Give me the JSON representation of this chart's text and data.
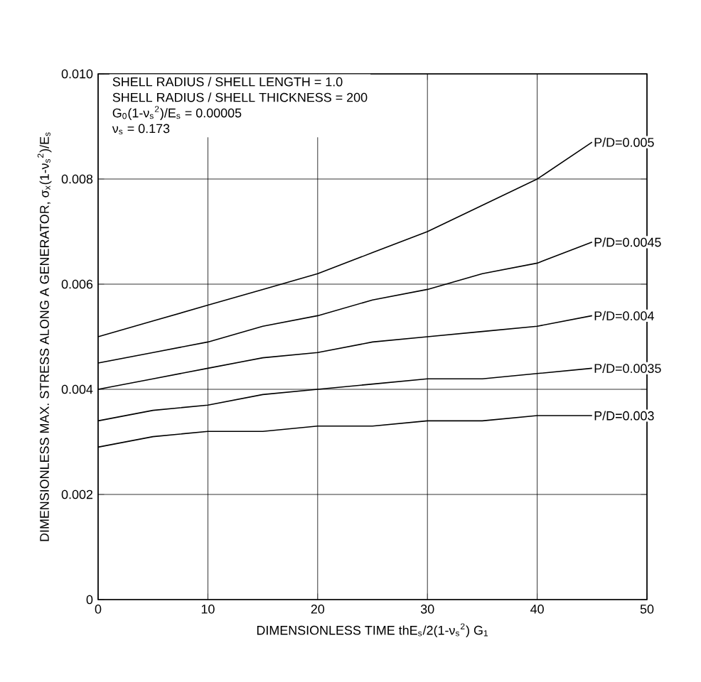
{
  "chart_data": {
    "type": "line",
    "xlabel": "DIMENSIONLESS TIME    thE$_{s}$/2(1-ν$_{s}$$^{2}$) G$_{1}$",
    "ylabel": "DIMENSIONLESS MAX. STRESS ALONG A GENERATOR, σ$_{x}$(1-ν$_{s}$$^{2}$)/E$_{s}$",
    "annotations": [
      "SHELL RADIUS / SHELL LENGTH = 1.0",
      "SHELL RADIUS / SHELL THICKNESS = 200",
      "G$_{0}$(1-ν$_{s}$$^{2}$)/E$_{s}$ = 0.00005",
      "ν$_{s}$ = 0.173"
    ],
    "x": [
      0,
      5,
      10,
      15,
      20,
      25,
      30,
      35,
      40,
      45
    ],
    "series": [
      {
        "name": "P/D=0.005",
        "color": "#000000",
        "values": [
          0.005,
          0.0053,
          0.0056,
          0.0059,
          0.0062,
          0.0066,
          0.007,
          0.0075,
          0.008,
          0.0087
        ]
      },
      {
        "name": "P/D=0.0045",
        "color": "#000000",
        "values": [
          0.0045,
          0.0047,
          0.0049,
          0.0052,
          0.0054,
          0.0057,
          0.0059,
          0.0062,
          0.0064,
          0.0068
        ]
      },
      {
        "name": "P/D=0.004",
        "color": "#000000",
        "values": [
          0.004,
          0.0042,
          0.0044,
          0.0046,
          0.0047,
          0.0049,
          0.005,
          0.0051,
          0.0052,
          0.0054
        ]
      },
      {
        "name": "P/D=0.0035",
        "color": "#000000",
        "values": [
          0.0034,
          0.0036,
          0.0037,
          0.0039,
          0.004,
          0.0041,
          0.0042,
          0.0042,
          0.0043,
          0.0044
        ]
      },
      {
        "name": "P/D=0.003",
        "color": "#000000",
        "values": [
          0.0029,
          0.0031,
          0.0032,
          0.0032,
          0.0033,
          0.0033,
          0.0034,
          0.0034,
          0.0035,
          0.0035
        ]
      }
    ],
    "xlim": [
      0,
      50
    ],
    "xticks": [
      0,
      10,
      20,
      30,
      40,
      50
    ],
    "ylim": [
      0,
      0.01
    ],
    "yticks": [
      0,
      0.002,
      0.004,
      0.006,
      0.008,
      {
        "value": 0.01,
        "label": "0.010"
      }
    ],
    "grid": true,
    "legend": false,
    "marker": "none",
    "line_style": "solid"
  }
}
